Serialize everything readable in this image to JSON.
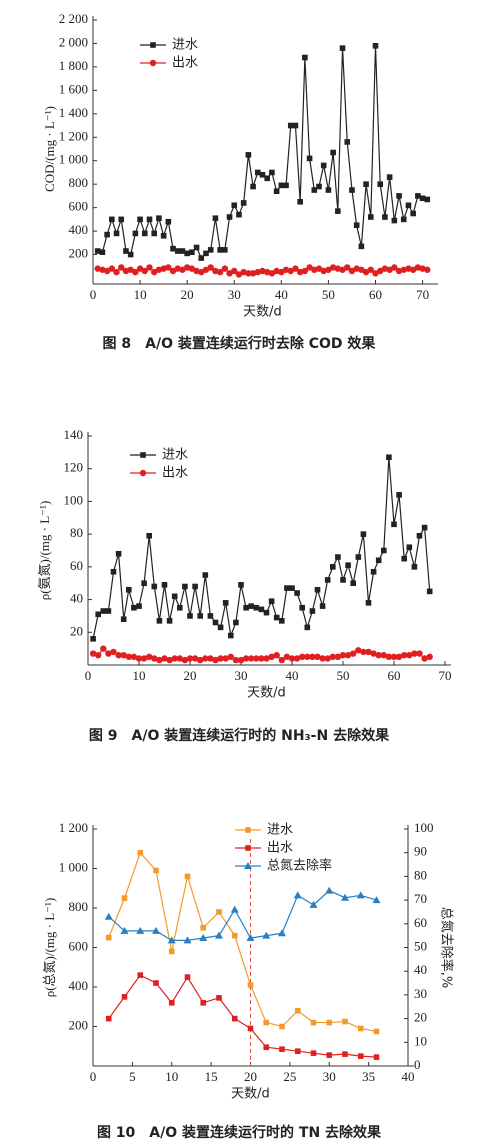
{
  "chart_data": [
    {
      "type": "line",
      "caption": "图 8　A/O 装置连续运行时去除 COD 效果",
      "xlabel": "天数/d",
      "ylabel": "COD/(mg · L⁻¹)",
      "x": [
        1,
        2,
        3,
        4,
        5,
        6,
        7,
        8,
        9,
        10,
        11,
        12,
        13,
        14,
        15,
        16,
        17,
        18,
        19,
        20,
        21,
        22,
        23,
        24,
        25,
        26,
        27,
        28,
        29,
        30,
        31,
        32,
        33,
        34,
        35,
        36,
        37,
        38,
        39,
        40,
        41,
        42,
        43,
        44,
        45,
        46,
        47,
        48,
        49,
        50,
        51,
        52,
        53,
        54,
        55,
        56,
        57,
        58,
        59,
        60,
        61,
        62,
        63,
        64,
        65,
        66,
        67,
        68,
        69,
        70,
        71
      ],
      "series": [
        {
          "name": "进水",
          "color": "#222222",
          "marker": "square",
          "values": [
            230,
            220,
            370,
            500,
            380,
            500,
            230,
            200,
            380,
            500,
            380,
            500,
            380,
            510,
            360,
            480,
            250,
            230,
            230,
            210,
            220,
            260,
            170,
            210,
            240,
            510,
            240,
            240,
            520,
            620,
            540,
            640,
            1050,
            780,
            900,
            880,
            850,
            900,
            740,
            790,
            790,
            1300,
            1300,
            650,
            1880,
            1020,
            750,
            780,
            960,
            750,
            1070,
            570,
            1960,
            1160,
            750,
            450,
            270,
            800,
            520,
            1980,
            800,
            520,
            860,
            490,
            700,
            500,
            620,
            550,
            700,
            680,
            670
          ]
        },
        {
          "name": "出水",
          "color": "#e02020",
          "marker": "circle",
          "values": [
            80,
            70,
            60,
            80,
            50,
            90,
            60,
            70,
            50,
            80,
            60,
            90,
            50,
            70,
            80,
            90,
            60,
            80,
            70,
            90,
            80,
            60,
            50,
            70,
            90,
            60,
            50,
            80,
            40,
            60,
            30,
            50,
            40,
            40,
            50,
            60,
            50,
            40,
            60,
            50,
            70,
            60,
            80,
            50,
            60,
            90,
            70,
            80,
            60,
            70,
            90,
            80,
            70,
            90,
            60,
            80,
            70,
            50,
            70,
            40,
            60,
            80,
            70,
            90,
            60,
            70,
            80,
            70,
            90,
            80,
            70
          ]
        }
      ],
      "xlim": [
        0,
        72
      ],
      "xticks": [
        0,
        10,
        20,
        30,
        40,
        50,
        60,
        70
      ],
      "ylim": [
        0,
        2200
      ],
      "yticks": [
        200,
        400,
        600,
        800,
        {
          "value": 1000,
          "label": "1 000"
        },
        {
          "value": 1200,
          "label": "1 200"
        },
        {
          "value": 1400,
          "label": "1 400"
        },
        {
          "value": 1600,
          "label": "1 600"
        },
        {
          "value": 1800,
          "label": "1 800"
        },
        {
          "value": 2000,
          "label": "2 000"
        },
        {
          "value": 2200,
          "label": "2 200"
        }
      ]
    },
    {
      "type": "line",
      "caption": "图 9　A/O 装置连续运行时的 NH₃-N 去除效果",
      "xlabel": "天数/d",
      "ylabel": "ρ(氨氮)/(mg · L⁻¹)",
      "x": [
        1,
        2,
        3,
        4,
        5,
        6,
        7,
        8,
        9,
        10,
        11,
        12,
        13,
        14,
        15,
        16,
        17,
        18,
        19,
        20,
        21,
        22,
        23,
        24,
        25,
        26,
        27,
        28,
        29,
        30,
        31,
        32,
        33,
        34,
        35,
        36,
        37,
        38,
        39,
        40,
        41,
        42,
        43,
        44,
        45,
        46,
        47,
        48,
        49,
        50,
        51,
        52,
        53,
        54,
        55,
        56,
        57,
        58,
        59,
        60,
        61,
        62,
        63,
        64,
        65,
        66,
        67
      ],
      "series": [
        {
          "name": "进水",
          "color": "#222222",
          "marker": "square",
          "values": [
            16,
            31,
            33,
            33,
            57,
            68,
            28,
            46,
            35,
            36,
            50,
            79,
            48,
            27,
            49,
            27,
            42,
            35,
            48,
            30,
            48,
            30,
            55,
            30,
            26,
            23,
            38,
            18,
            26,
            49,
            35,
            36,
            35,
            34,
            32,
            39,
            29,
            27,
            47,
            47,
            44,
            35,
            23,
            33,
            46,
            36,
            52,
            60,
            66,
            52,
            61,
            50,
            66,
            80,
            38,
            57,
            64,
            70,
            127,
            86,
            104,
            65,
            72,
            60,
            79,
            84,
            45
          ]
        },
        {
          "name": "出水",
          "color": "#e02020",
          "marker": "circle",
          "values": [
            7,
            6,
            10,
            7,
            8,
            6,
            6,
            5,
            5,
            4,
            4,
            5,
            4,
            3,
            4,
            3,
            4,
            4,
            3,
            4,
            4,
            3,
            4,
            4,
            3,
            4,
            4,
            5,
            3,
            3,
            4,
            4,
            4,
            4,
            4,
            5,
            6,
            3,
            5,
            4,
            4,
            5,
            5,
            5,
            5,
            4,
            4,
            5,
            5,
            6,
            6,
            7,
            9,
            8,
            8,
            7,
            6,
            6,
            5,
            5,
            5,
            6,
            6,
            7,
            7,
            4,
            5
          ]
        }
      ],
      "xlim": [
        0,
        70
      ],
      "xticks": [
        0,
        10,
        20,
        30,
        40,
        50,
        60,
        70
      ],
      "ylim": [
        0,
        140
      ],
      "yticks": [
        20,
        40,
        60,
        80,
        100,
        120,
        140
      ]
    },
    {
      "type": "line",
      "caption": "图 10　A/O 装置连续运行时的 TN 去除效果",
      "xlabel": "天数/d",
      "ylabel": "ρ(总氮)/(mg · L⁻¹)",
      "y2label": "总氮去除率,%",
      "x": [
        2,
        4,
        6,
        8,
        10,
        12,
        14,
        16,
        18,
        20,
        22,
        24,
        26,
        28,
        30,
        32,
        34,
        36
      ],
      "reference_line": 20,
      "series": [
        {
          "name": "进水",
          "color": "#f39a2b",
          "marker": "square",
          "values": [
            650,
            850,
            1080,
            990,
            580,
            960,
            700,
            780,
            660,
            410,
            220,
            200,
            280,
            220,
            220,
            225,
            190,
            175
          ]
        },
        {
          "name": "出水",
          "color": "#e02020",
          "marker": "square",
          "values": [
            240,
            350,
            460,
            420,
            320,
            450,
            320,
            345,
            240,
            190,
            95,
            85,
            75,
            65,
            55,
            60,
            50,
            45
          ]
        },
        {
          "name": "总氮去除率",
          "color": "#2a7fc0",
          "marker": "triangle",
          "axis": "y2",
          "values": [
            63,
            57,
            57,
            57,
            53,
            53,
            54,
            55,
            66,
            54,
            55,
            56,
            72,
            68,
            74,
            71,
            72,
            70
          ]
        }
      ],
      "xlim": [
        0,
        40
      ],
      "xticks": [
        0,
        5,
        10,
        15,
        20,
        25,
        30,
        35,
        40
      ],
      "ylim": [
        0,
        1200
      ],
      "yticks": [
        200,
        400,
        600,
        800,
        {
          "value": 1000,
          "label": "1 000"
        },
        {
          "value": 1200,
          "label": "1 200"
        }
      ],
      "y2lim": [
        0,
        100
      ],
      "y2ticks": [
        0,
        10,
        20,
        30,
        40,
        50,
        60,
        70,
        80,
        90,
        100
      ]
    }
  ]
}
